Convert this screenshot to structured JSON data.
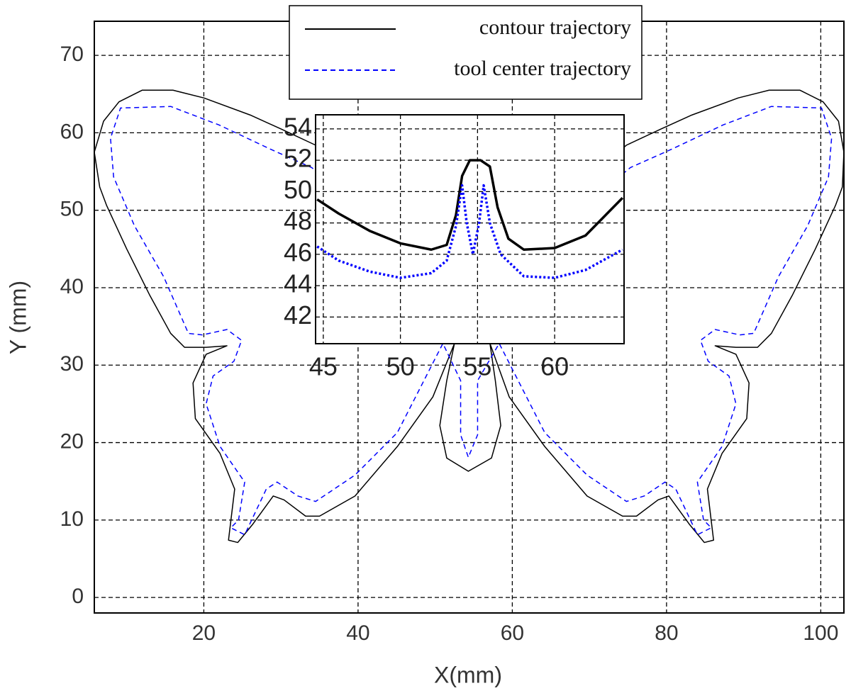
{
  "chart_data": [
    {
      "type": "line",
      "x_label": "X(mm)",
      "y_label": "Y (mm)",
      "xlim": [
        5.8,
        103
      ],
      "ylim": [
        -2,
        74.4
      ],
      "xticks": [
        20,
        40,
        60,
        80,
        100
      ],
      "yticks": [
        0,
        10,
        20,
        30,
        40,
        50,
        60,
        70
      ],
      "grid": true,
      "legend": "upper center",
      "series": [
        {
          "name": "contour trajectory",
          "color": "#000000",
          "linestyle": "solid",
          "x": [
            55,
            54.5,
            54,
            53.3,
            52.5,
            51,
            50,
            48,
            46,
            44.5,
            40,
            34.5,
            30,
            26,
            20,
            16,
            12,
            9,
            7,
            5.8,
            6.5,
            7.4,
            10,
            13,
            15.7,
            17.5,
            20.3,
            23,
            20.3,
            18.6,
            18.9,
            22.1,
            24,
            23.2,
            24.4,
            26.3,
            29,
            30.4,
            33.2,
            35,
            39.6,
            45.1,
            49.7,
            52.5,
            51.5,
            50.6,
            51.5,
            54.3,
            57.3,
            58.5,
            57.8,
            57.1,
            59.6,
            64.2,
            69.7,
            74.3,
            76.1,
            78.9,
            80.3,
            83,
            84.9,
            86.1,
            85.3,
            87.2,
            90.4,
            90.7,
            89,
            86.3,
            89,
            91.8,
            93.6,
            96.3,
            99.3,
            101.9,
            102.8,
            103,
            102.3,
            100.3,
            97.3,
            93.3,
            89.3,
            83.3,
            79.3,
            74.8,
            69.3,
            64.5,
            62,
            60,
            58,
            57,
            56.5,
            55.8,
            55
          ],
          "values": [
            52.3,
            52,
            50.5,
            47,
            45.8,
            45.4,
            45.8,
            46.8,
            48.5,
            49.5,
            53.5,
            58.4,
            60.5,
            62.3,
            64.5,
            65.5,
            65.5,
            64,
            61.5,
            57.5,
            53,
            50.6,
            45,
            39,
            34.1,
            32.3,
            32.3,
            32.5,
            31.4,
            27.7,
            23.1,
            18.6,
            14,
            7.4,
            7.1,
            9.4,
            13.1,
            12.6,
            10.5,
            10.5,
            13.1,
            19.5,
            25.9,
            32.8,
            28,
            22.2,
            18,
            16.3,
            18,
            22.2,
            28,
            32.8,
            25.9,
            19.5,
            13.1,
            10.5,
            10.5,
            12.6,
            13.1,
            9.4,
            7.1,
            7.4,
            14,
            18.6,
            23.1,
            27.7,
            31.4,
            32.5,
            32.3,
            32.3,
            34.1,
            39,
            45,
            50.6,
            53,
            57.5,
            61.5,
            64,
            65.5,
            65.5,
            64.5,
            62.3,
            60.5,
            58.4,
            53.5,
            49.5,
            46.5,
            45.3,
            45.5,
            47,
            49,
            52,
            52.3
          ]
        },
        {
          "name": "tool center trajectory",
          "color": "#0000ff",
          "linestyle": "dashed",
          "x": [
            54,
            53.5,
            52,
            50,
            48,
            44.5,
            40,
            34,
            28.6,
            22,
            15.7,
            9.2,
            7.9,
            8.3,
            11,
            14.8,
            18,
            19.8,
            23,
            24.9,
            23.9,
            21.2,
            20.3,
            22.1,
            25.3,
            24.5,
            23.5,
            25.3,
            28.1,
            29.5,
            32.2,
            34.5,
            39.6,
            45.1,
            51,
            53.3,
            53.3,
            54.3,
            55.5,
            55.5,
            58.3,
            64.2,
            69.7,
            74.8,
            77.1,
            79.8,
            81.2,
            84,
            85.8,
            84.8,
            84,
            87.2,
            89,
            88.1,
            85.4,
            84.4,
            86.3,
            89.5,
            91.3,
            94.5,
            98.3,
            101,
            101.4,
            100.1,
            93.6,
            87.3,
            80.7,
            75.3,
            69.3,
            64.5,
            62,
            60,
            57,
            55.5,
            54.8,
            54
          ],
          "values": [
            50.4,
            46.5,
            45,
            44.6,
            45.5,
            46.5,
            50.5,
            55.5,
            57.9,
            61,
            63.4,
            63.2,
            59.3,
            54.3,
            48,
            41.4,
            34.1,
            33.9,
            34.6,
            33.2,
            30.5,
            28.6,
            25,
            19.5,
            14.9,
            10,
            9,
            8.1,
            14,
            14.9,
            13.1,
            12.4,
            15.8,
            21.3,
            32.8,
            28,
            21,
            18.1,
            21,
            28,
            32.8,
            21.3,
            15.8,
            12.4,
            13.1,
            14.9,
            14,
            8.1,
            9,
            10,
            14.9,
            19.5,
            25,
            28.6,
            30.5,
            33.2,
            34.6,
            33.9,
            34.1,
            41.4,
            48,
            54.3,
            59.3,
            63.2,
            63.4,
            61,
            57.9,
            55.5,
            50.5,
            46,
            44.8,
            44.8,
            45.5,
            50.5,
            46,
            50.4
          ]
        }
      ]
    },
    {
      "type": "line",
      "xlim": [
        44.5,
        64.5
      ],
      "ylim": [
        40.3,
        54.9
      ],
      "xticks": [
        45,
        50,
        55,
        60
      ],
      "yticks": [
        42,
        44,
        46,
        48,
        50,
        52,
        54
      ],
      "grid": true,
      "series": [
        {
          "color": "#000000",
          "linestyle": "solid",
          "x": [
            44.6,
            46,
            48,
            50,
            52,
            53,
            53.6,
            54,
            54.5,
            55.2,
            55.8,
            56.3,
            57,
            58,
            60,
            62,
            64.4
          ],
          "values": [
            49.5,
            48.6,
            47.5,
            46.7,
            46.3,
            46.6,
            48.5,
            51,
            52,
            52,
            51.6,
            49,
            47,
            46.3,
            46.4,
            47.2,
            49.6
          ]
        },
        {
          "color": "#0000ff",
          "linestyle": "dotted",
          "x": [
            44.6,
            46,
            48,
            50,
            52,
            53,
            53.6,
            54,
            54.3,
            54.7,
            55.1,
            55.4,
            55.8,
            56.5,
            58,
            60,
            62,
            64.4
          ],
          "values": [
            46.5,
            45.6,
            44.9,
            44.5,
            44.8,
            45.6,
            47.8,
            50.4,
            48,
            46,
            48,
            50.4,
            48,
            46,
            44.6,
            44.5,
            45,
            46.3
          ]
        }
      ]
    }
  ]
}
